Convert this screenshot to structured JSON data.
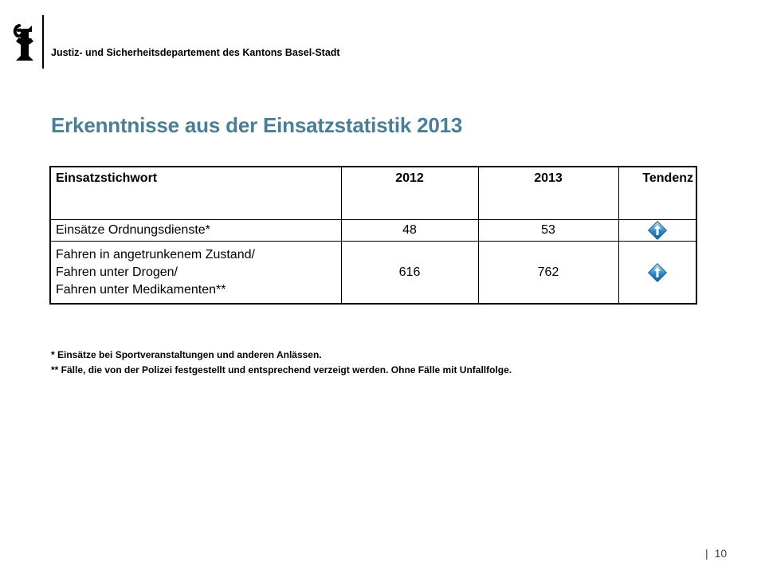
{
  "header": {
    "department": "Justiz- und Sicherheitsdepartement des Kantons Basel-Stadt"
  },
  "slide": {
    "title": "Erkenntnisse aus der Einsatzstatistik 2013"
  },
  "table": {
    "columns": [
      "Einsatzstichwort",
      "2012",
      "2013",
      "Tendenz"
    ],
    "rows": [
      {
        "label_lines": [
          "Einsätze Ordnungsdienste*"
        ],
        "v2012": "48",
        "v2013": "53",
        "trend": "up-arrow-icon"
      },
      {
        "label_lines": [
          "Fahren in angetrunkenem Zustand/",
          "Fahren unter Drogen/",
          "Fahren unter Medikamenten**"
        ],
        "v2012": "616",
        "v2013": "762",
        "trend": "up-arrow-icon"
      }
    ]
  },
  "footnotes": [
    "* Einsätze bei Sportveranstaltungen und anderen Anlässen.",
    "** Fälle, die von der Polizei festgestellt und entsprechend verzeigt werden. Ohne Fälle mit Unfallfolge."
  ],
  "footer": {
    "separator": "|",
    "page_number": "10"
  },
  "colors": {
    "title": "#4a7e96",
    "trend_icon": "#2e88c9"
  }
}
